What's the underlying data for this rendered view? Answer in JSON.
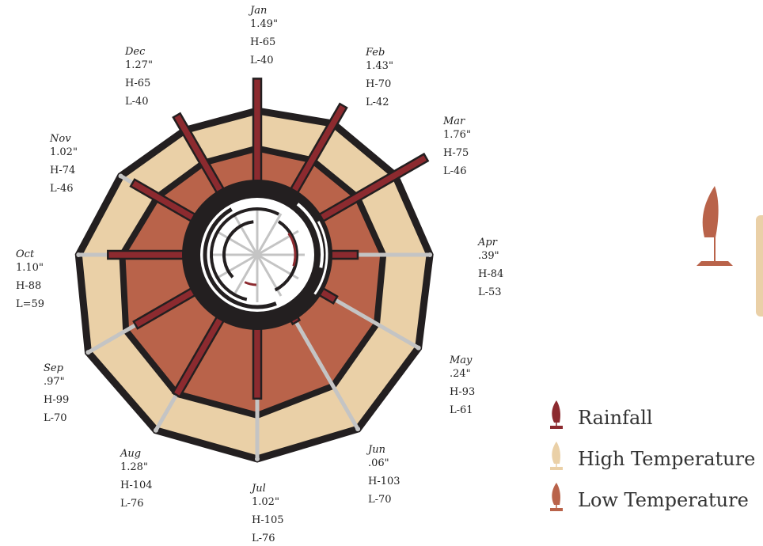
{
  "chart_data": {
    "type": "radial",
    "categories": [
      "Jan",
      "Feb",
      "Mar",
      "Apr",
      "May",
      "Jun",
      "Jul",
      "Aug",
      "Sep",
      "Oct",
      "Nov",
      "Dec"
    ],
    "series": [
      {
        "name": "Rainfall",
        "color": "#8c2a2f",
        "values": [
          1.49,
          1.43,
          1.76,
          0.39,
          0.24,
          0.06,
          1.02,
          1.28,
          0.97,
          1.1,
          1.02,
          1.27
        ],
        "value_labels": [
          "1.49\"",
          "1.43\"",
          "1.76\"",
          ".39\"",
          ".24\"",
          ".06\"",
          "1.02\"",
          "1.28\"",
          ".97\"",
          "1.10\"",
          "1.02\"",
          "1.27\""
        ]
      },
      {
        "name": "High Temperature",
        "color": "#ead0a7",
        "values": [
          65,
          70,
          75,
          84,
          93,
          103,
          105,
          104,
          99,
          88,
          74,
          65
        ],
        "value_labels": [
          "H-65",
          "H-70",
          "H-75",
          "H-84",
          "H-93",
          "H-103",
          "H-105",
          "H-104",
          "H-99",
          "H-88",
          "H-74",
          "H-65"
        ]
      },
      {
        "name": "Low Temperature",
        "color": "#b9634a",
        "values": [
          40,
          42,
          46,
          53,
          61,
          70,
          76,
          76,
          70,
          59,
          46,
          40
        ],
        "value_labels": [
          "L-40",
          "L-42",
          "L-46",
          "L-53",
          "L-61",
          "L-70",
          "L-76",
          "L-76",
          "L-70",
          "L=59",
          "L-46",
          "L-40"
        ]
      }
    ]
  }
}
